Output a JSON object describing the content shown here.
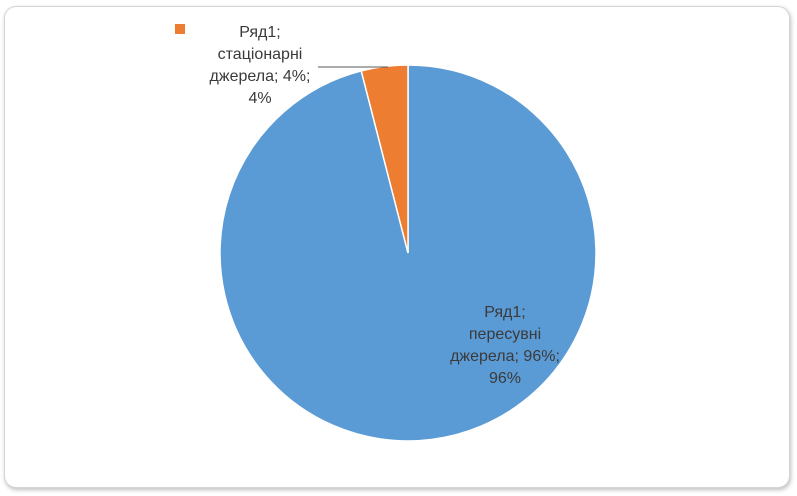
{
  "chart_data": {
    "type": "pie",
    "series": [
      {
        "name": "Ряд1",
        "values": [
          96,
          4
        ]
      }
    ],
    "categories": [
      "пересувні джерела",
      "стаціонарні джерела"
    ],
    "colors": [
      "#5b9bd5",
      "#ed7d31"
    ],
    "data_labels": [
      "Ряд1;\nпересувні\nджерела; 96%;\n96%",
      "Ряд1;\nстаціонарні\nджерела; 4%;\n4%"
    ],
    "legend_position": "top-left",
    "grid": false
  }
}
